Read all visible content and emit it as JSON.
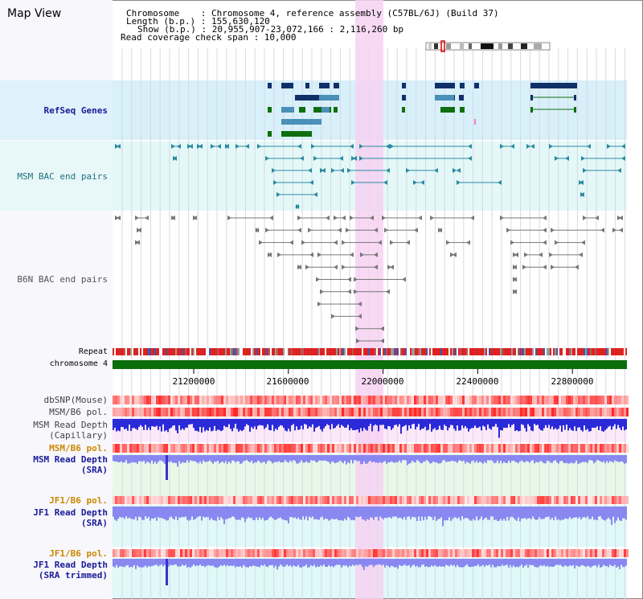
{
  "title": "Map View",
  "info": {
    "chromosome_line": "Chromosome    : Chromosome 4, reference assembly (C57BL/6J) (Build 37)",
    "length_line": "Length (b.p.) : 155,630,120",
    "show_line": "Show (b.p.) : 20,955,907-23,072,166 : 2,116,260 bp",
    "span_line": "Read coverage check span : 10,000"
  },
  "tracks": {
    "refseq": "RefSeq Genes",
    "msm_bac": "MSM BAC end pairs",
    "b6n_bac": "B6N BAC end pairs",
    "repeat": "Repeat",
    "chromosome": "chromosome 4",
    "dbsnp": "dbSNP(Mouse)",
    "msm_b6_pol_1": "MSM/B6 pol.",
    "msm_depth_cap_1": "MSM Read Depth",
    "msm_depth_cap_2": "(Capillary)",
    "msm_b6_pol_2": "MSM/B6 pol.",
    "msm_depth_sra_1": "MSM Read Depth",
    "msm_depth_sra_2": "(SRA)",
    "jf1_b6_pol_1": "JF1/B6 pol.",
    "jf1_depth_sra_1": "JF1 Read Depth",
    "jf1_depth_sra_2": "(SRA)",
    "jf1_b6_pol_2": "JF1/B6 pol.",
    "jf1_depth_trim_1": "JF1 Read Depth",
    "jf1_depth_trim_2": "(SRA trimmed)"
  },
  "axis": {
    "ticks": [
      "21200000",
      "21600000",
      "22000000",
      "22400000",
      "22800000"
    ],
    "range": [
      20955907,
      23072166
    ]
  },
  "colors": {
    "refseq_label": "#1a1a99",
    "msm_label": "#207080",
    "b6n_label": "#555555",
    "pol_label": "#cc8800",
    "depth_label": "#1a1a99",
    "gene_navy": "#10306a",
    "gene_steel": "#4a90b8",
    "gene_green": "#0f6e0f",
    "msm_pair": "#2a8aa0",
    "b6n_pair": "#777777",
    "highlight": "#f6d2f2",
    "chromosome_bar": "#0a6e0a",
    "depth_blue_dark": "#2a2ad8",
    "depth_blue_light": "#8888f0"
  }
}
